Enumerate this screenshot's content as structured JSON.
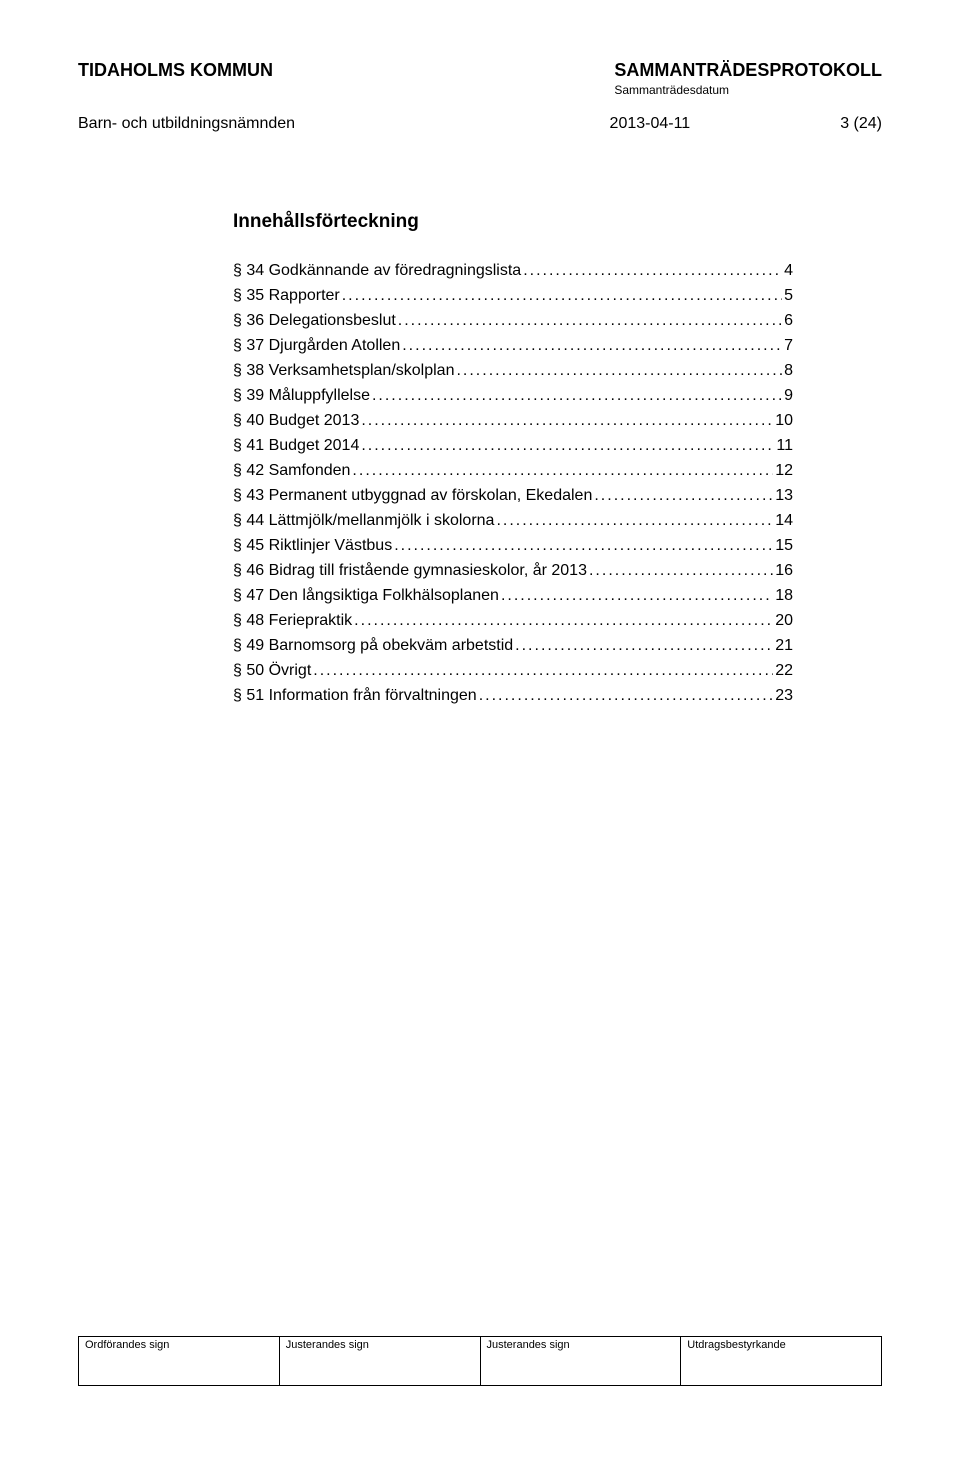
{
  "header": {
    "org": "TIDAHOLMS KOMMUN",
    "protocol": "SAMMANTRÄDESPROTOKOLL",
    "datum_label": "Sammanträdesdatum",
    "committee": "Barn- och utbildningsnämnden",
    "date": "2013-04-11",
    "page": "3 (24)"
  },
  "toc": {
    "title": "Innehållsförteckning",
    "items": [
      {
        "label": "§ 34 Godkännande av föredragningslista",
        "page": "4"
      },
      {
        "label": "§ 35 Rapporter",
        "page": "5"
      },
      {
        "label": "§ 36 Delegationsbeslut",
        "page": "6"
      },
      {
        "label": "§ 37 Djurgården Atollen",
        "page": "7"
      },
      {
        "label": "§ 38 Verksamhetsplan/skolplan",
        "page": "8"
      },
      {
        "label": "§ 39 Måluppfyllelse",
        "page": "9"
      },
      {
        "label": "§ 40 Budget 2013",
        "page": "10"
      },
      {
        "label": "§ 41 Budget 2014",
        "page": "11"
      },
      {
        "label": "§ 42 Samfonden",
        "page": "12"
      },
      {
        "label": "§ 43 Permanent utbyggnad av förskolan, Ekedalen",
        "page": "13"
      },
      {
        "label": "§ 44 Lättmjölk/mellanmjölk i skolorna",
        "page": "14"
      },
      {
        "label": "§ 45 Riktlinjer Västbus",
        "page": "15"
      },
      {
        "label": "§ 46 Bidrag till fristående gymnasieskolor, år 2013",
        "page": "16"
      },
      {
        "label": "§ 47 Den långsiktiga Folkhälsoplanen",
        "page": "18"
      },
      {
        "label": "§ 48 Feriepraktik",
        "page": "20"
      },
      {
        "label": "§ 49 Barnomsorg på obekväm arbetstid",
        "page": "21"
      },
      {
        "label": "§ 50 Övrigt",
        "page": "22"
      },
      {
        "label": "§ 51 Information från förvaltningen",
        "page": "23"
      }
    ]
  },
  "footer": {
    "cells": [
      "Ordförandes sign",
      "Justerandes sign",
      "Justerandes sign",
      "Utdragsbestyrkande"
    ]
  }
}
